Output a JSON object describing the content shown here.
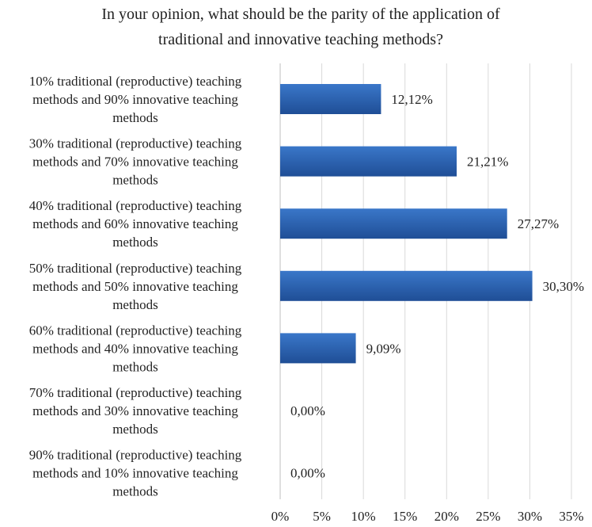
{
  "chart_data": {
    "type": "bar",
    "orientation": "horizontal",
    "title_lines": [
      "In your opinion, what should be the parity of the application of",
      "traditional and innovative teaching methods?"
    ],
    "categories": [
      [
        "10% traditional (reproductive) teaching",
        "methods and 90% innovative teaching",
        "methods"
      ],
      [
        "30% traditional (reproductive) teaching",
        "methods and 70% innovative teaching",
        "methods"
      ],
      [
        "40% traditional (reproductive) teaching",
        "methods and 60% innovative teaching",
        "methods"
      ],
      [
        "50% traditional (reproductive) teaching",
        "methods and  50% innovative teaching",
        "methods"
      ],
      [
        "60% traditional (reproductive) teaching",
        "methods and  40% innovative teaching",
        "methods"
      ],
      [
        "70% traditional (reproductive) teaching",
        "methods and 30% innovative teaching",
        "methods"
      ],
      [
        "90% traditional (reproductive) teaching",
        "methods and 10% innovative teaching",
        "methods"
      ]
    ],
    "values": [
      12.12,
      21.21,
      27.27,
      30.3,
      9.09,
      0.0,
      0.0
    ],
    "data_labels": [
      "12,12%",
      "21,21%",
      "27,27%",
      "30,30%",
      "9,09%",
      "0,00%",
      "0,00%"
    ],
    "xlim": [
      0,
      35
    ],
    "x_ticks": [
      0,
      5,
      10,
      15,
      20,
      25,
      30,
      35
    ],
    "x_tick_labels": [
      "0%",
      "5%",
      "10%",
      "15%",
      "20%",
      "25%",
      "30%",
      "35%"
    ],
    "grid": "vertical",
    "legend": "none",
    "colors": {
      "bar_top": "#3a77c9",
      "bar_bottom": "#1f4e96",
      "grid": "#d9d9d9",
      "axis": "#bfbfbf",
      "text": "#222222"
    }
  }
}
